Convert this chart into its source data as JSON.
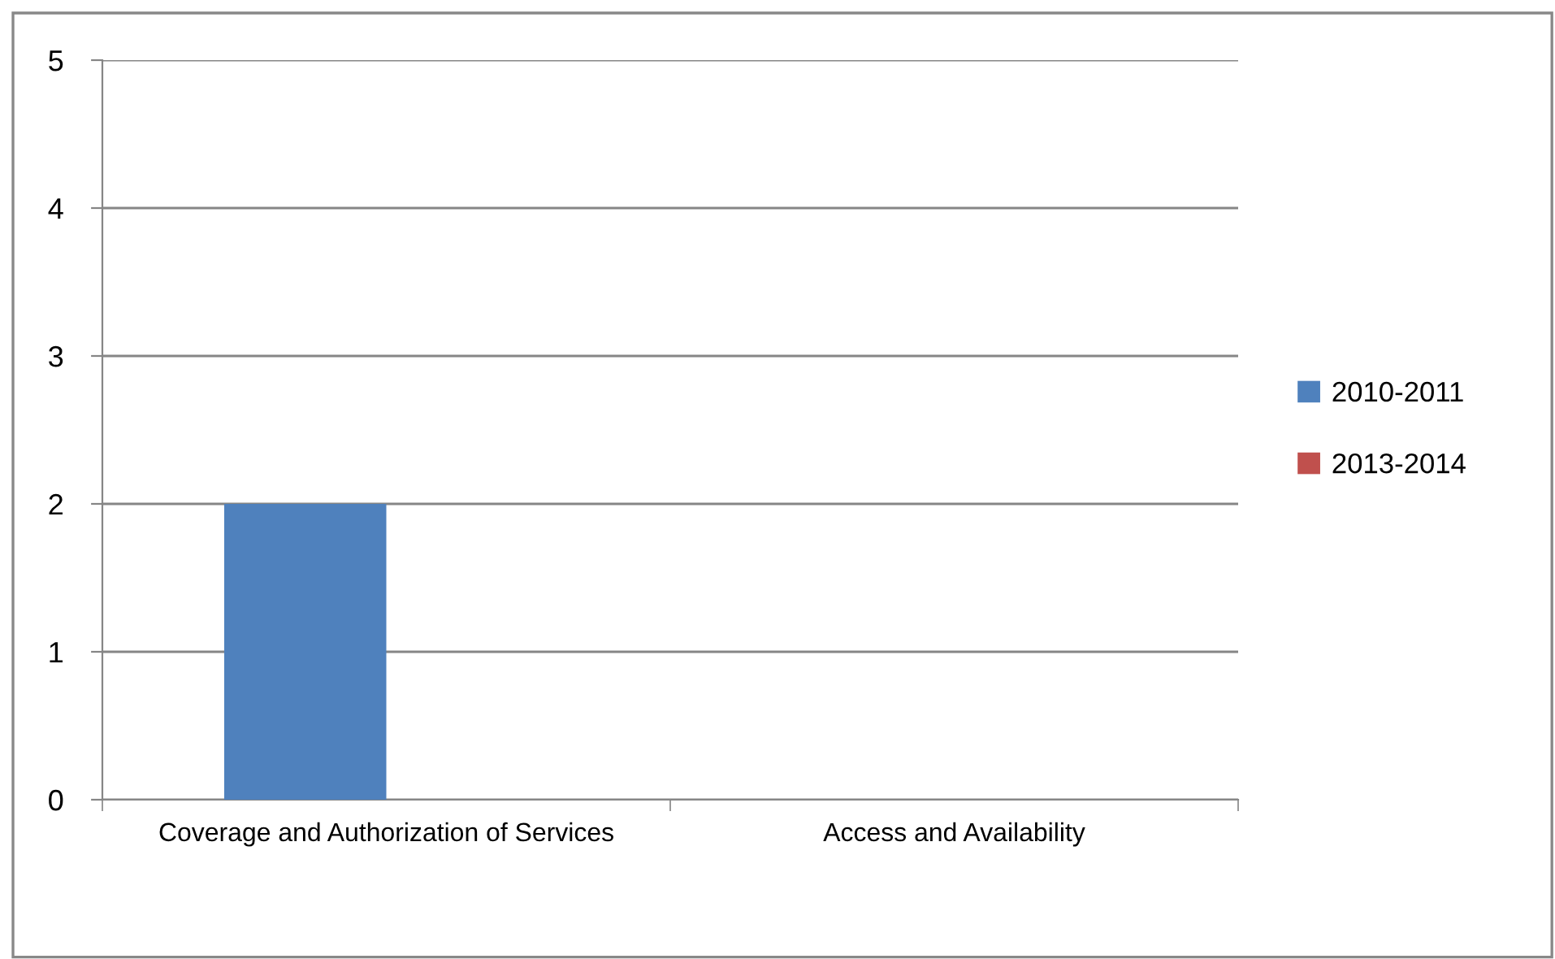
{
  "chart_data": {
    "type": "bar",
    "categories": [
      "Coverage and Authorization of Services",
      "Access and Availability"
    ],
    "series": [
      {
        "name": "2010-2011",
        "color": "#4f81bd",
        "values": [
          2,
          0
        ]
      },
      {
        "name": "2013-2014",
        "color": "#c0504d",
        "values": [
          0,
          0
        ]
      }
    ],
    "ylim": [
      0,
      5
    ],
    "yticks": [
      0,
      1,
      2,
      3,
      4,
      5
    ],
    "grid": "y",
    "legend": "right"
  }
}
